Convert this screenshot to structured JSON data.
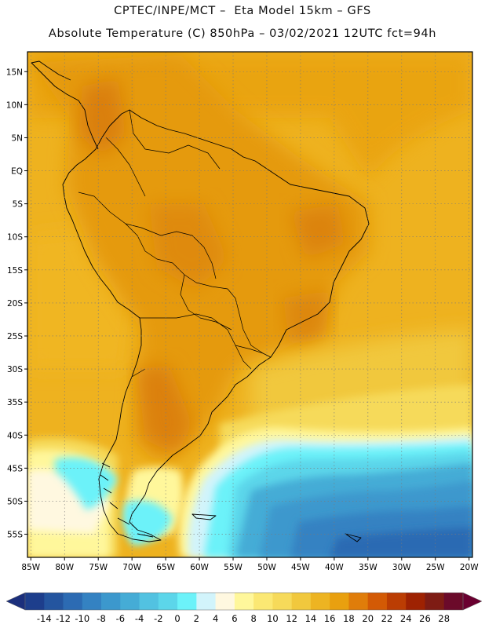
{
  "header": {
    "line1": "CPTEC/INPE/MCT –  Eta Model 15km – GFS",
    "line2": "Absolute Temperature (C) 850hPa – 03/02/2021 12UTC fct=94h"
  },
  "map": {
    "lat_labels": [
      "15N",
      "10N",
      "5N",
      "EQ",
      "5S",
      "10S",
      "15S",
      "20S",
      "25S",
      "30S",
      "35S",
      "40S",
      "45S",
      "50S",
      "55S"
    ],
    "lat_values": [
      15,
      10,
      5,
      0,
      -5,
      -10,
      -15,
      -20,
      -25,
      -30,
      -35,
      -40,
      -45,
      -50,
      -55
    ],
    "lon_labels": [
      "85W",
      "80W",
      "75W",
      "70W",
      "65W",
      "60W",
      "55W",
      "50W",
      "45W",
      "40W",
      "35W",
      "30W",
      "25W",
      "20W"
    ],
    "lon_values": [
      -85,
      -80,
      -75,
      -70,
      -65,
      -60,
      -55,
      -50,
      -45,
      -40,
      -35,
      -30,
      -25,
      -20
    ],
    "lon_range": [
      -85.5,
      -19.5
    ],
    "lat_range": [
      -58.5,
      18
    ]
  },
  "colorbar": {
    "labels": [
      "-14",
      "-12",
      "-10",
      "-8",
      "-6",
      "-4",
      "-2",
      "0",
      "2",
      "4",
      "6",
      "8",
      "10",
      "12",
      "14",
      "16",
      "18",
      "20",
      "22",
      "24",
      "26",
      "28"
    ],
    "colors": [
      "#1d3e8c",
      "#24559f",
      "#2c6bb3",
      "#3482c2",
      "#3c98cd",
      "#45acd6",
      "#52c2e1",
      "#5cd6ea",
      "#6cf2f9",
      "#d2f4fb",
      "#fff8e0",
      "#fff79b",
      "#fbe873",
      "#f6da5a",
      "#f1c83d",
      "#edb422",
      "#e9a00f",
      "#e07d0a",
      "#d35a05",
      "#bb3d03",
      "#9e2202",
      "#7e1c14",
      "#6b0a2a"
    ],
    "under_color": "#1b2f7c",
    "over_color": "#6a0030"
  }
}
